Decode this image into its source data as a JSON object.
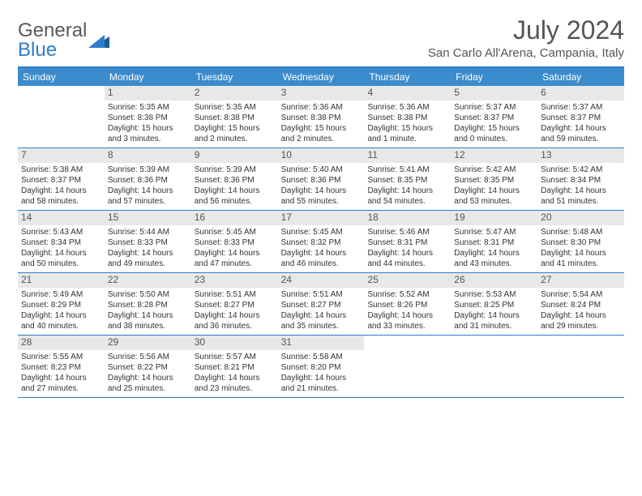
{
  "logo": {
    "text1": "General",
    "text2": "Blue"
  },
  "title": "July 2024",
  "location": "San Carlo All'Arena, Campania, Italy",
  "colors": {
    "header_bg": "#3b8ccc",
    "border": "#2d7dc8",
    "daynum_bg": "#e8e8e8",
    "text": "#333333",
    "title_text": "#555555"
  },
  "dow": [
    "Sunday",
    "Monday",
    "Tuesday",
    "Wednesday",
    "Thursday",
    "Friday",
    "Saturday"
  ],
  "weeks": [
    [
      {
        "n": "",
        "sr": "",
        "ss": "",
        "dl": ""
      },
      {
        "n": "1",
        "sr": "Sunrise: 5:35 AM",
        "ss": "Sunset: 8:38 PM",
        "dl": "Daylight: 15 hours and 3 minutes."
      },
      {
        "n": "2",
        "sr": "Sunrise: 5:35 AM",
        "ss": "Sunset: 8:38 PM",
        "dl": "Daylight: 15 hours and 2 minutes."
      },
      {
        "n": "3",
        "sr": "Sunrise: 5:36 AM",
        "ss": "Sunset: 8:38 PM",
        "dl": "Daylight: 15 hours and 2 minutes."
      },
      {
        "n": "4",
        "sr": "Sunrise: 5:36 AM",
        "ss": "Sunset: 8:38 PM",
        "dl": "Daylight: 15 hours and 1 minute."
      },
      {
        "n": "5",
        "sr": "Sunrise: 5:37 AM",
        "ss": "Sunset: 8:37 PM",
        "dl": "Daylight: 15 hours and 0 minutes."
      },
      {
        "n": "6",
        "sr": "Sunrise: 5:37 AM",
        "ss": "Sunset: 8:37 PM",
        "dl": "Daylight: 14 hours and 59 minutes."
      }
    ],
    [
      {
        "n": "7",
        "sr": "Sunrise: 5:38 AM",
        "ss": "Sunset: 8:37 PM",
        "dl": "Daylight: 14 hours and 58 minutes."
      },
      {
        "n": "8",
        "sr": "Sunrise: 5:39 AM",
        "ss": "Sunset: 8:36 PM",
        "dl": "Daylight: 14 hours and 57 minutes."
      },
      {
        "n": "9",
        "sr": "Sunrise: 5:39 AM",
        "ss": "Sunset: 8:36 PM",
        "dl": "Daylight: 14 hours and 56 minutes."
      },
      {
        "n": "10",
        "sr": "Sunrise: 5:40 AM",
        "ss": "Sunset: 8:36 PM",
        "dl": "Daylight: 14 hours and 55 minutes."
      },
      {
        "n": "11",
        "sr": "Sunrise: 5:41 AM",
        "ss": "Sunset: 8:35 PM",
        "dl": "Daylight: 14 hours and 54 minutes."
      },
      {
        "n": "12",
        "sr": "Sunrise: 5:42 AM",
        "ss": "Sunset: 8:35 PM",
        "dl": "Daylight: 14 hours and 53 minutes."
      },
      {
        "n": "13",
        "sr": "Sunrise: 5:42 AM",
        "ss": "Sunset: 8:34 PM",
        "dl": "Daylight: 14 hours and 51 minutes."
      }
    ],
    [
      {
        "n": "14",
        "sr": "Sunrise: 5:43 AM",
        "ss": "Sunset: 8:34 PM",
        "dl": "Daylight: 14 hours and 50 minutes."
      },
      {
        "n": "15",
        "sr": "Sunrise: 5:44 AM",
        "ss": "Sunset: 8:33 PM",
        "dl": "Daylight: 14 hours and 49 minutes."
      },
      {
        "n": "16",
        "sr": "Sunrise: 5:45 AM",
        "ss": "Sunset: 8:33 PM",
        "dl": "Daylight: 14 hours and 47 minutes."
      },
      {
        "n": "17",
        "sr": "Sunrise: 5:45 AM",
        "ss": "Sunset: 8:32 PM",
        "dl": "Daylight: 14 hours and 46 minutes."
      },
      {
        "n": "18",
        "sr": "Sunrise: 5:46 AM",
        "ss": "Sunset: 8:31 PM",
        "dl": "Daylight: 14 hours and 44 minutes."
      },
      {
        "n": "19",
        "sr": "Sunrise: 5:47 AM",
        "ss": "Sunset: 8:31 PM",
        "dl": "Daylight: 14 hours and 43 minutes."
      },
      {
        "n": "20",
        "sr": "Sunrise: 5:48 AM",
        "ss": "Sunset: 8:30 PM",
        "dl": "Daylight: 14 hours and 41 minutes."
      }
    ],
    [
      {
        "n": "21",
        "sr": "Sunrise: 5:49 AM",
        "ss": "Sunset: 8:29 PM",
        "dl": "Daylight: 14 hours and 40 minutes."
      },
      {
        "n": "22",
        "sr": "Sunrise: 5:50 AM",
        "ss": "Sunset: 8:28 PM",
        "dl": "Daylight: 14 hours and 38 minutes."
      },
      {
        "n": "23",
        "sr": "Sunrise: 5:51 AM",
        "ss": "Sunset: 8:27 PM",
        "dl": "Daylight: 14 hours and 36 minutes."
      },
      {
        "n": "24",
        "sr": "Sunrise: 5:51 AM",
        "ss": "Sunset: 8:27 PM",
        "dl": "Daylight: 14 hours and 35 minutes."
      },
      {
        "n": "25",
        "sr": "Sunrise: 5:52 AM",
        "ss": "Sunset: 8:26 PM",
        "dl": "Daylight: 14 hours and 33 minutes."
      },
      {
        "n": "26",
        "sr": "Sunrise: 5:53 AM",
        "ss": "Sunset: 8:25 PM",
        "dl": "Daylight: 14 hours and 31 minutes."
      },
      {
        "n": "27",
        "sr": "Sunrise: 5:54 AM",
        "ss": "Sunset: 8:24 PM",
        "dl": "Daylight: 14 hours and 29 minutes."
      }
    ],
    [
      {
        "n": "28",
        "sr": "Sunrise: 5:55 AM",
        "ss": "Sunset: 8:23 PM",
        "dl": "Daylight: 14 hours and 27 minutes."
      },
      {
        "n": "29",
        "sr": "Sunrise: 5:56 AM",
        "ss": "Sunset: 8:22 PM",
        "dl": "Daylight: 14 hours and 25 minutes."
      },
      {
        "n": "30",
        "sr": "Sunrise: 5:57 AM",
        "ss": "Sunset: 8:21 PM",
        "dl": "Daylight: 14 hours and 23 minutes."
      },
      {
        "n": "31",
        "sr": "Sunrise: 5:58 AM",
        "ss": "Sunset: 8:20 PM",
        "dl": "Daylight: 14 hours and 21 minutes."
      },
      {
        "n": "",
        "sr": "",
        "ss": "",
        "dl": ""
      },
      {
        "n": "",
        "sr": "",
        "ss": "",
        "dl": ""
      },
      {
        "n": "",
        "sr": "",
        "ss": "",
        "dl": ""
      }
    ]
  ]
}
